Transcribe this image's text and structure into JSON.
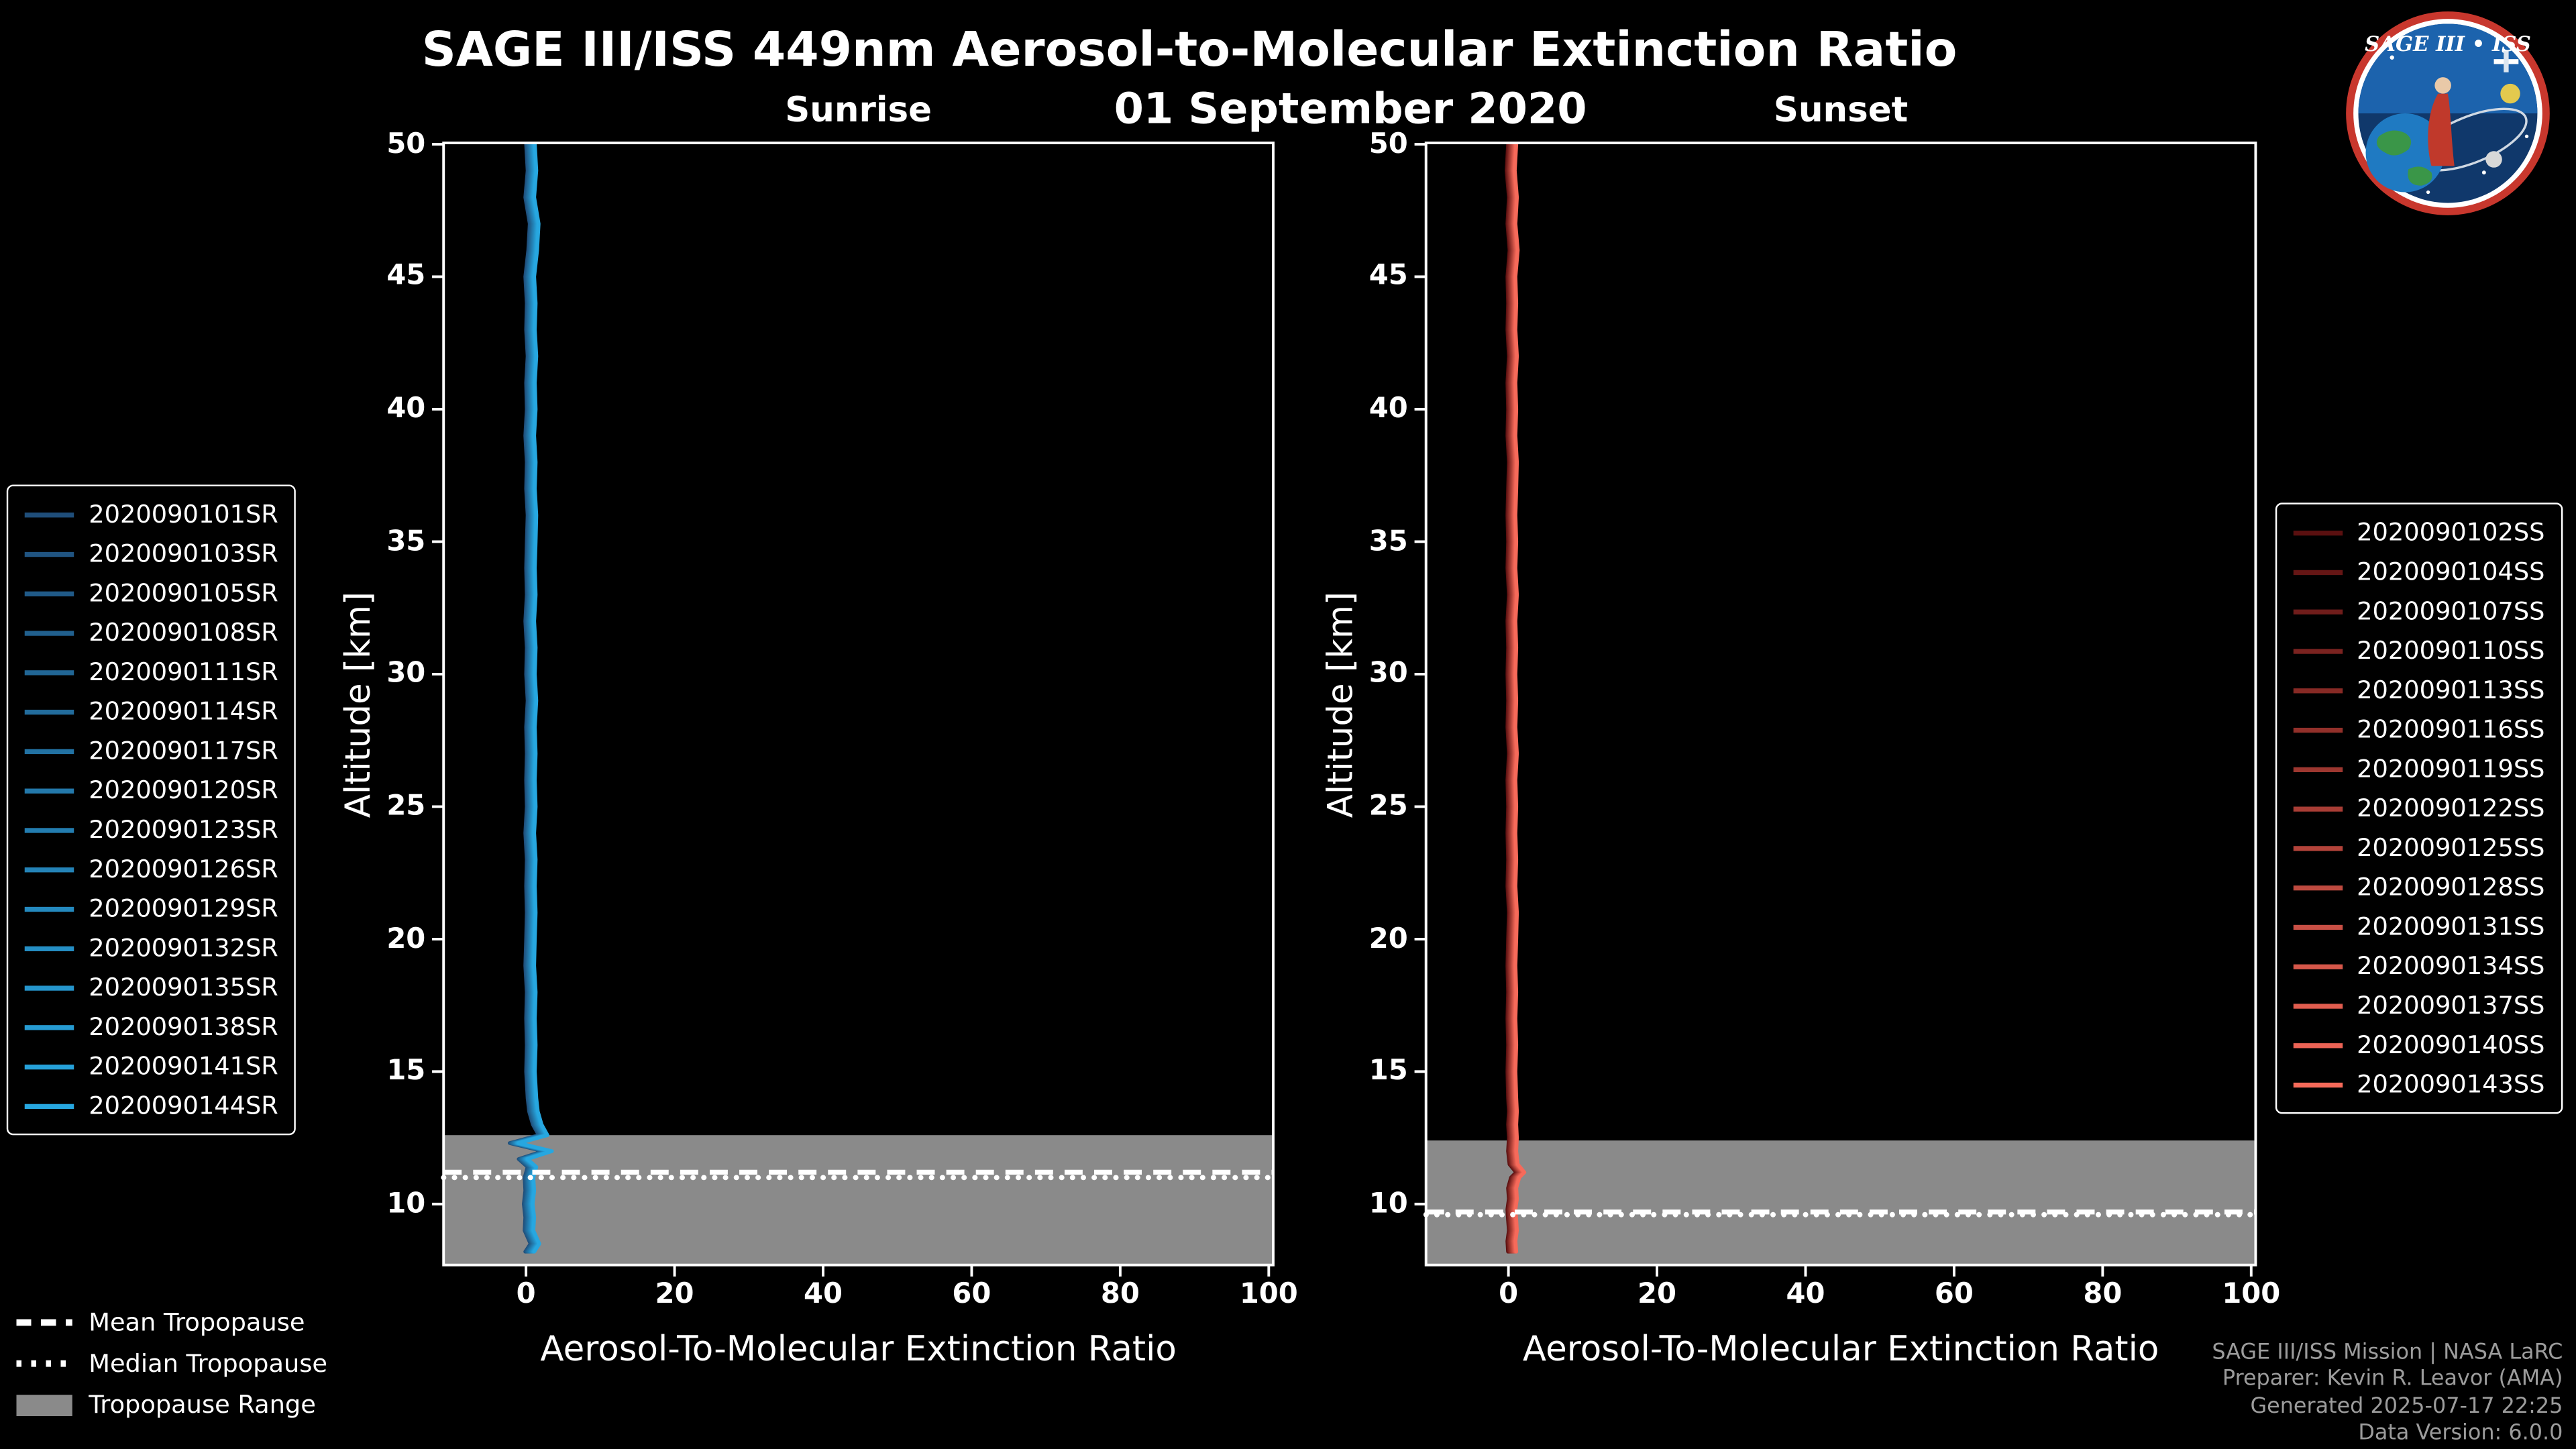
{
  "title": "SAGE III/ISS 449nm Aerosol-to-Molecular Extinction Ratio",
  "date": "01 September 2020",
  "logo": {
    "text": "SAGE III • ISS"
  },
  "colors": {
    "background": "#000000",
    "foreground": "#ffffff",
    "tropopause_band": "#8a8a8a",
    "credits_text": "#9c9c9c",
    "sunrise_line": "#27A7E0",
    "sunset_line": "#F66A5A"
  },
  "bottom_legend": [
    {
      "label": "Mean Tropopause",
      "style": "dashed"
    },
    {
      "label": "Median Tropopause",
      "style": "dotted"
    },
    {
      "label": "Tropopause Range",
      "style": "patch"
    }
  ],
  "credits": [
    "SAGE III/ISS Mission | NASA LaRC",
    "Preparer: Kevin R. Leavor (AMA)",
    "Generated 2025-07-17 22:25",
    "Data Version: 6.0.0"
  ],
  "chart_data": [
    {
      "type": "line",
      "title": "Sunrise",
      "xlabel": "Aerosol-To-Molecular Extinction Ratio",
      "ylabel": "Altitude [km]",
      "xlim": [
        -11.1,
        100.6
      ],
      "ylim": [
        7.7,
        50.05
      ],
      "xticks": [
        0,
        20,
        40,
        60,
        80,
        100
      ],
      "yticks": [
        10,
        15,
        20,
        25,
        30,
        35,
        40,
        45,
        50
      ],
      "grid": false,
      "legend_position": "outside-left",
      "mean_tropopause_km": 11.2,
      "median_tropopause_km": 11.0,
      "tropopause_range_km": [
        7.7,
        12.6
      ],
      "series": [
        {
          "name": "2020090101SR",
          "color": "#1F4E7A"
        },
        {
          "name": "2020090103SR",
          "color": "#205481"
        },
        {
          "name": "2020090105SR",
          "color": "#205A88"
        },
        {
          "name": "2020090108SR",
          "color": "#21608E"
        },
        {
          "name": "2020090111SR",
          "color": "#216695"
        },
        {
          "name": "2020090114SR",
          "color": "#226C9C"
        },
        {
          "name": "2020090117SR",
          "color": "#2272A3"
        },
        {
          "name": "2020090120SR",
          "color": "#2378AA"
        },
        {
          "name": "2020090123SR",
          "color": "#237DB0"
        },
        {
          "name": "2020090126SR",
          "color": "#2483B7"
        },
        {
          "name": "2020090129SR",
          "color": "#2489BE"
        },
        {
          "name": "2020090132SR",
          "color": "#258FC5"
        },
        {
          "name": "2020090135SR",
          "color": "#2595CC"
        },
        {
          "name": "2020090138SR",
          "color": "#269BD2"
        },
        {
          "name": "2020090141SR",
          "color": "#26A1D9"
        },
        {
          "name": "2020090144SR",
          "color": "#27A7E0"
        }
      ],
      "profile": {
        "altitude_km": [
          50,
          49,
          48,
          47,
          46,
          45,
          44,
          43,
          42,
          41,
          40,
          39,
          38,
          37,
          36,
          35,
          34,
          33,
          32,
          31,
          30,
          29,
          28,
          27,
          26,
          25,
          24,
          23,
          22,
          21,
          20,
          19,
          18,
          17,
          16,
          15,
          14,
          13.5,
          13,
          12.6,
          12.3,
          12.0,
          11.7,
          11.4,
          11.0,
          10.5,
          10,
          9.5,
          9,
          8.5,
          8.2
        ],
        "ratio": [
          0.6,
          0.8,
          0.5,
          1.1,
          0.9,
          0.5,
          0.7,
          0.6,
          0.8,
          0.6,
          0.7,
          0.5,
          0.7,
          0.6,
          0.8,
          0.7,
          0.6,
          0.7,
          0.5,
          0.7,
          0.6,
          0.8,
          0.6,
          0.7,
          0.6,
          0.7,
          0.5,
          0.7,
          0.6,
          0.7,
          0.6,
          0.5,
          0.7,
          0.6,
          0.7,
          0.6,
          0.8,
          1.0,
          1.5,
          2.3,
          -1.6,
          2.9,
          -0.4,
          0.8,
          0.4,
          0.5,
          0.3,
          0.5,
          0.4,
          1.2,
          0.5
        ]
      }
    },
    {
      "type": "line",
      "title": "Sunset",
      "xlabel": "Aerosol-To-Molecular Extinction Ratio",
      "ylabel": "Altitude [km]",
      "xlim": [
        -11.1,
        100.6
      ],
      "ylim": [
        7.7,
        50.05
      ],
      "xticks": [
        0,
        20,
        40,
        60,
        80,
        100
      ],
      "yticks": [
        10,
        15,
        20,
        25,
        30,
        35,
        40,
        45,
        50
      ],
      "grid": false,
      "legend_position": "outside-right",
      "mean_tropopause_km": 9.7,
      "median_tropopause_km": 9.6,
      "tropopause_range_km": [
        7.7,
        12.4
      ],
      "series": [
        {
          "name": "2020090102SS",
          "color": "#5A1010"
        },
        {
          "name": "2020090104SS",
          "color": "#651615"
        },
        {
          "name": "2020090107SS",
          "color": "#701D1B"
        },
        {
          "name": "2020090110SS",
          "color": "#7B2320"
        },
        {
          "name": "2020090113SS",
          "color": "#872A25"
        },
        {
          "name": "2020090116SS",
          "color": "#92302A"
        },
        {
          "name": "2020090119SS",
          "color": "#9D3730"
        },
        {
          "name": "2020090122SS",
          "color": "#A83D35"
        },
        {
          "name": "2020090125SS",
          "color": "#B3433A"
        },
        {
          "name": "2020090128SS",
          "color": "#BE4A3F"
        },
        {
          "name": "2020090131SS",
          "color": "#C95045"
        },
        {
          "name": "2020090134SS",
          "color": "#D5574A"
        },
        {
          "name": "2020090137SS",
          "color": "#E05D4F"
        },
        {
          "name": "2020090140SS",
          "color": "#EB6355"
        },
        {
          "name": "2020090143SS",
          "color": "#F66A5A"
        }
      ],
      "profile": {
        "altitude_km": [
          50,
          49,
          48,
          47,
          46,
          45,
          44,
          43,
          42,
          41,
          40,
          39,
          38,
          37,
          36,
          35,
          34,
          33,
          32,
          31,
          30,
          29,
          28,
          27,
          26,
          25,
          24,
          23,
          22,
          21,
          20,
          19,
          18,
          17,
          16,
          15,
          14,
          13.5,
          13,
          12.5,
          12,
          11.5,
          11.2,
          11.0,
          10.6,
          10.2,
          9.8,
          9.4,
          9.0,
          8.6,
          8.2
        ],
        "ratio": [
          0.5,
          0.3,
          0.6,
          0.4,
          0.7,
          0.4,
          0.5,
          0.4,
          0.6,
          0.4,
          0.5,
          0.4,
          0.6,
          0.5,
          0.4,
          0.5,
          0.4,
          0.6,
          0.4,
          0.5,
          0.4,
          0.5,
          0.4,
          0.6,
          0.4,
          0.5,
          0.4,
          0.5,
          0.4,
          0.6,
          0.5,
          0.4,
          0.5,
          0.4,
          0.5,
          0.4,
          0.5,
          0.6,
          0.5,
          0.6,
          0.5,
          0.7,
          1.6,
          0.9,
          0.5,
          0.6,
          0.4,
          0.5,
          0.6,
          0.4,
          0.5
        ]
      }
    }
  ]
}
